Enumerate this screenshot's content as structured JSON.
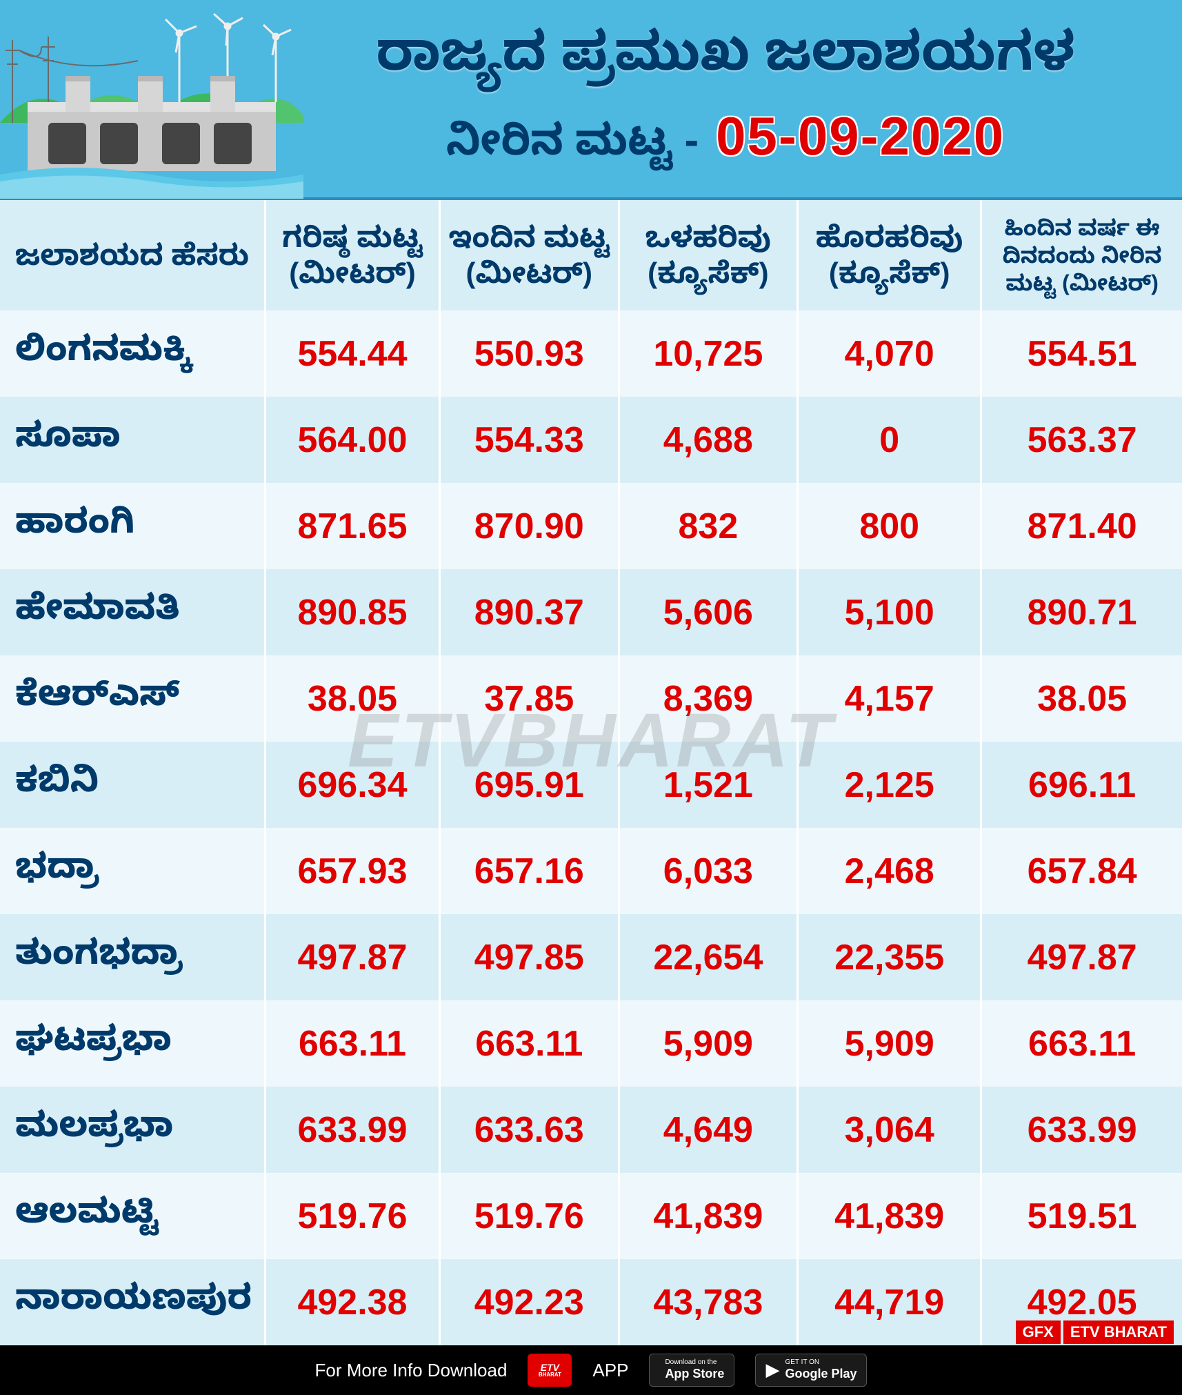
{
  "header": {
    "title": "ರಾಜ್ಯದ ಪ್ರಮುಖ ಜಲಾಶಯಗಳ",
    "subtitle": "ನೀರಿನ ಮಟ್ಟ -",
    "date": "05-09-2020",
    "title_color": "#003a6b",
    "date_color": "#e00000",
    "background_color": "#4db8e0"
  },
  "illustration": {
    "sky_color": "#4db8e0",
    "hill_color": "#3eb85c",
    "dam_color": "#c9c9c9",
    "dam_dark": "#8a8a8a",
    "water_color": "#5cc8e8",
    "tower_color": "#7a7a7a",
    "turbine_color": "#eeeeee"
  },
  "table": {
    "header_bg": "#d8eef6",
    "header_color": "#003a6b",
    "row_even_bg": "#d8eef6",
    "row_odd_bg": "#eef8fc",
    "name_color": "#003a6b",
    "value_color": "#e00000",
    "columns": [
      "ಜಲಾಶಯದ ಹೆಸರು",
      "ಗರಿಷ್ಠ ಮಟ್ಟ (ಮೀಟರ್)",
      "ಇಂದಿನ ಮಟ್ಟ (ಮೀಟರ್)",
      "ಒಳಹರಿವು (ಕ್ಯೂಸೆಕ್)",
      "ಹೊರಹರಿವು (ಕ್ಯೂಸೆಕ್)",
      "ಹಿಂದಿನ ವರ್ಷ ಈ ದಿನದಂದು ನೀರಿನ ಮಟ್ಟ (ಮೀಟರ್)"
    ],
    "rows": [
      {
        "name": "ಲಿಂಗನಮಕ್ಕಿ",
        "max": "554.44",
        "today": "550.93",
        "inflow": "10,725",
        "outflow": "4,070",
        "last_year": "554.51"
      },
      {
        "name": "ಸೂಪಾ",
        "max": "564.00",
        "today": "554.33",
        "inflow": "4,688",
        "outflow": "0",
        "last_year": "563.37"
      },
      {
        "name": "ಹಾರಂಗಿ",
        "max": "871.65",
        "today": "870.90",
        "inflow": "832",
        "outflow": "800",
        "last_year": "871.40"
      },
      {
        "name": "ಹೇಮಾವತಿ",
        "max": "890.85",
        "today": "890.37",
        "inflow": "5,606",
        "outflow": "5,100",
        "last_year": "890.71"
      },
      {
        "name": "ಕೆಆರ್‌ಎಸ್",
        "max": "38.05",
        "today": "37.85",
        "inflow": "8,369",
        "outflow": "4,157",
        "last_year": "38.05"
      },
      {
        "name": "ಕಬಿನಿ",
        "max": "696.34",
        "today": "695.91",
        "inflow": "1,521",
        "outflow": "2,125",
        "last_year": "696.11"
      },
      {
        "name": "ಭದ್ರಾ",
        "max": "657.93",
        "today": "657.16",
        "inflow": "6,033",
        "outflow": "2,468",
        "last_year": "657.84"
      },
      {
        "name": "ತುಂಗಭದ್ರಾ",
        "max": "497.87",
        "today": "497.85",
        "inflow": "22,654",
        "outflow": "22,355",
        "last_year": "497.87"
      },
      {
        "name": "ಘಟಪ್ರಭಾ",
        "max": "663.11",
        "today": "663.11",
        "inflow": "5,909",
        "outflow": "5,909",
        "last_year": "663.11"
      },
      {
        "name": "ಮಲಪ್ರಭಾ",
        "max": "633.99",
        "today": "633.63",
        "inflow": "4,649",
        "outflow": "3,064",
        "last_year": "633.99"
      },
      {
        "name": "ಆಲಮಟ್ಟಿ",
        "max": "519.76",
        "today": "519.76",
        "inflow": "41,839",
        "outflow": "41,839",
        "last_year": "519.51"
      },
      {
        "name": "ನಾರಾಯಣಪುರ",
        "max": "492.38",
        "today": "492.23",
        "inflow": "43,783",
        "outflow": "44,719",
        "last_year": "492.05"
      }
    ]
  },
  "watermark": {
    "text_prefix": "ETV",
    "text_suffix": "BHARAT",
    "color": "rgba(120,120,120,0.25)"
  },
  "footer": {
    "info_text": "For More Info Download",
    "app_label": "APP",
    "app_logo_top": "ETV",
    "app_logo_bottom": "BHARAT",
    "appstore_top": "Download on the",
    "appstore_bottom": "App Store",
    "play_top": "GET IT ON",
    "play_bottom": "Google Play",
    "gfx": "GFX",
    "brand": "ETV BHARAT",
    "background_color": "#000000",
    "badge_color": "#e00000"
  }
}
